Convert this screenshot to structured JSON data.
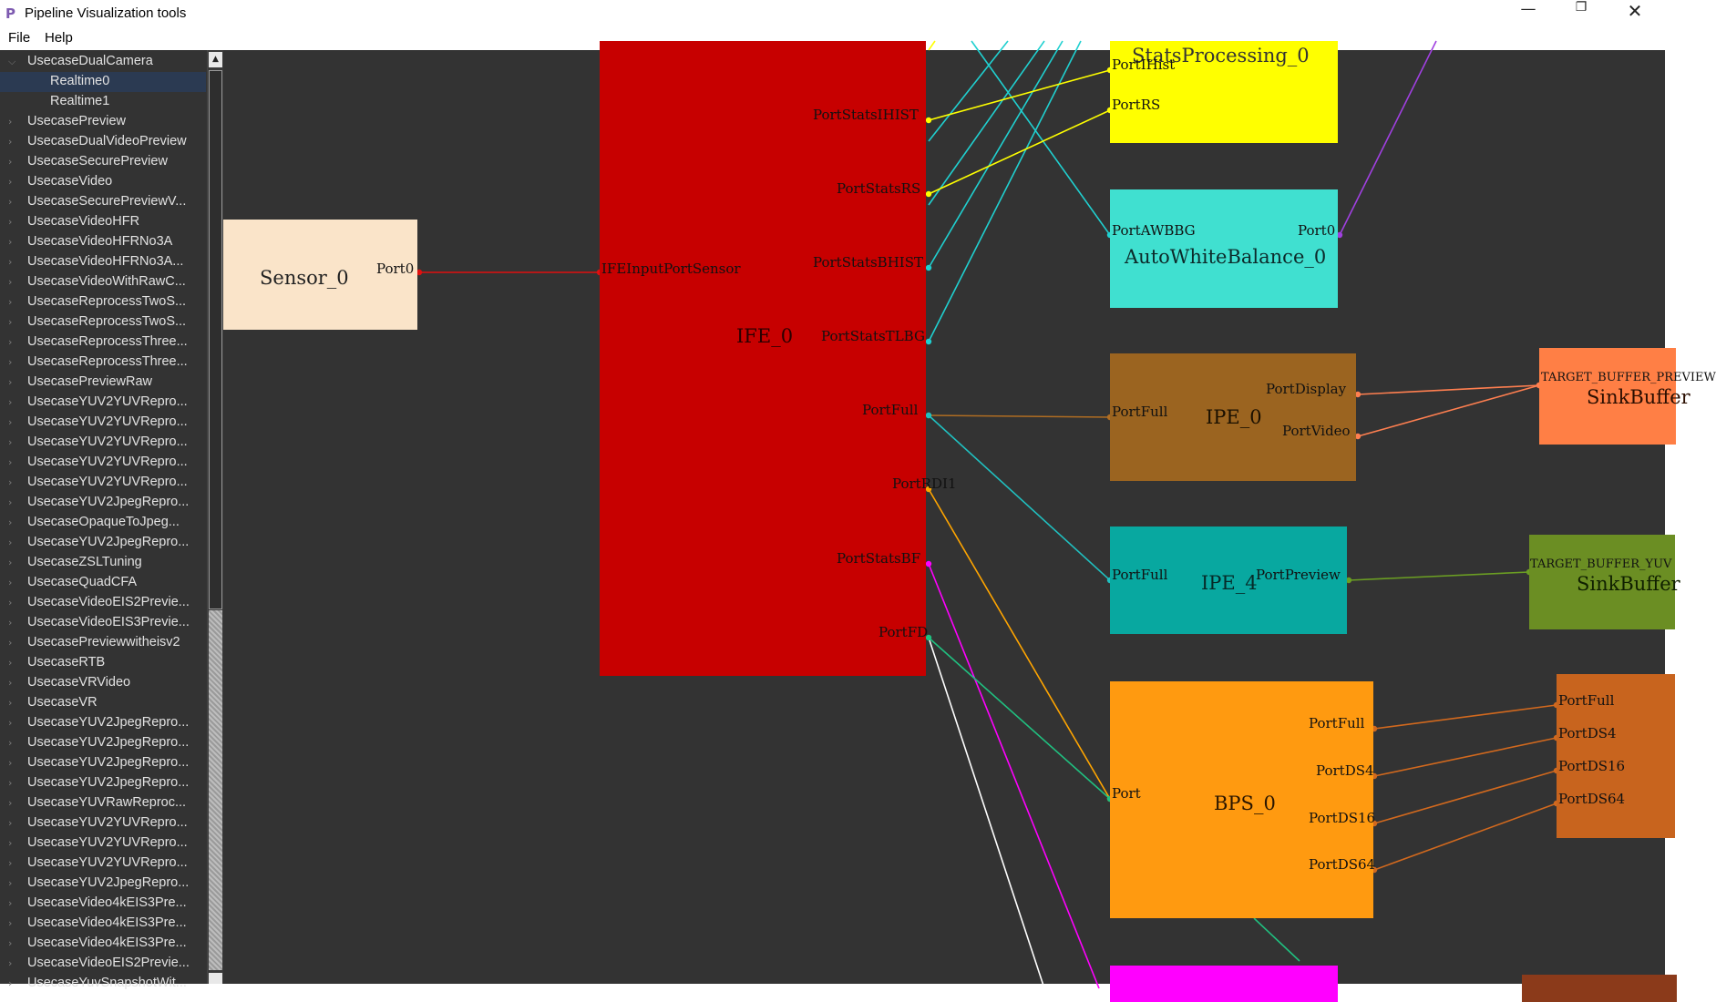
{
  "window": {
    "app_icon": "P",
    "title": "Pipeline Visualization tools",
    "minimize": "—",
    "maximize": "❐",
    "close": "✕"
  },
  "menu": {
    "file": "File",
    "help": "Help"
  },
  "tree": {
    "items": [
      {
        "label": "UsecaseDualCamera",
        "expanded": true
      },
      {
        "label": "Realtime0",
        "child": true,
        "selected": true
      },
      {
        "label": "Realtime1",
        "child": true
      },
      {
        "label": "UsecasePreview"
      },
      {
        "label": "UsecaseDualVideoPreview"
      },
      {
        "label": "UsecaseSecurePreview"
      },
      {
        "label": "UsecaseVideo"
      },
      {
        "label": "UsecaseSecurePreviewV..."
      },
      {
        "label": "UsecaseVideoHFR"
      },
      {
        "label": "UsecaseVideoHFRNo3A"
      },
      {
        "label": "UsecaseVideoHFRNo3A..."
      },
      {
        "label": "UsecaseVideoWithRawC..."
      },
      {
        "label": "UsecaseReprocessTwoS..."
      },
      {
        "label": "UsecaseReprocessTwoS..."
      },
      {
        "label": "UsecaseReprocessThree..."
      },
      {
        "label": "UsecaseReprocessThree..."
      },
      {
        "label": "UsecasePreviewRaw"
      },
      {
        "label": "UsecaseYUV2YUVRepro..."
      },
      {
        "label": "UsecaseYUV2YUVRepro..."
      },
      {
        "label": "UsecaseYUV2YUVRepro..."
      },
      {
        "label": "UsecaseYUV2YUVRepro..."
      },
      {
        "label": "UsecaseYUV2YUVRepro..."
      },
      {
        "label": "UsecaseYUV2JpegRepro..."
      },
      {
        "label": "UsecaseOpaqueToJpeg..."
      },
      {
        "label": "UsecaseYUV2JpegRepro..."
      },
      {
        "label": "UsecaseZSLTuning"
      },
      {
        "label": "UsecaseQuadCFA"
      },
      {
        "label": "UsecaseVideoEIS2Previe..."
      },
      {
        "label": "UsecaseVideoEIS3Previe..."
      },
      {
        "label": "UsecasePreviewwitheisv2"
      },
      {
        "label": "UsecaseRTB"
      },
      {
        "label": "UsecaseVRVideo"
      },
      {
        "label": "UsecaseVR"
      },
      {
        "label": "UsecaseYUV2JpegRepro..."
      },
      {
        "label": "UsecaseYUV2JpegRepro..."
      },
      {
        "label": "UsecaseYUV2JpegRepro..."
      },
      {
        "label": "UsecaseYUV2JpegRepro..."
      },
      {
        "label": "UsecaseYUVRawReproc..."
      },
      {
        "label": "UsecaseYUV2YUVRepro..."
      },
      {
        "label": "UsecaseYUV2YUVRepro..."
      },
      {
        "label": "UsecaseYUV2YUVRepro..."
      },
      {
        "label": "UsecaseYUV2JpegRepro..."
      },
      {
        "label": "UsecaseVideo4kEIS3Pre..."
      },
      {
        "label": "UsecaseVideo4kEIS3Pre..."
      },
      {
        "label": "UsecaseVideo4kEIS3Pre..."
      },
      {
        "label": "UsecaseVideoEIS2Previe..."
      },
      {
        "label": "UsecaseYuvSnapshotWit..."
      }
    ]
  },
  "graph": {
    "nodes": [
      {
        "id": "sensor",
        "title": "Sensor_0",
        "color": "#fae4c9",
        "ports": [
          {
            "id": "p0",
            "label": "Port0"
          }
        ]
      },
      {
        "id": "ife",
        "title": "IFE_0",
        "color": "#c70000",
        "ports": [
          {
            "id": "in",
            "label": "IFEInputPortSensor"
          },
          {
            "id": "ihist",
            "label": "PortStatsIHIST"
          },
          {
            "id": "rs",
            "label": "PortStatsRS"
          },
          {
            "id": "bhist",
            "label": "PortStatsBHIST"
          },
          {
            "id": "tlbg",
            "label": "PortStatsTLBG"
          },
          {
            "id": "full",
            "label": "PortFull"
          },
          {
            "id": "rdi",
            "label": "PortRDI1"
          },
          {
            "id": "bf",
            "label": "PortStatsBF"
          },
          {
            "id": "fd",
            "label": "PortFD"
          }
        ]
      },
      {
        "id": "statp",
        "title": "StatsProcessing_0",
        "color": "#ffff00",
        "ports": [
          {
            "id": "ihist",
            "label": "PortIHist"
          },
          {
            "id": "rs",
            "label": "PortRS"
          }
        ]
      },
      {
        "id": "awb",
        "title": "AutoWhiteBalance_0",
        "color": "#40e0d0",
        "ports": [
          {
            "id": "awbbg",
            "label": "PortAWBBG"
          },
          {
            "id": "out",
            "label": "Port0"
          }
        ]
      },
      {
        "id": "ipe0",
        "title": "IPE_0",
        "color": "#9b6420",
        "ports": [
          {
            "id": "full",
            "label": "PortFull"
          },
          {
            "id": "disp",
            "label": "PortDisplay"
          },
          {
            "id": "video",
            "label": "PortVideo"
          }
        ]
      },
      {
        "id": "ipe4",
        "title": "IPE_4",
        "color": "#08a8a0",
        "ports": [
          {
            "id": "full",
            "label": "PortFull"
          },
          {
            "id": "prev",
            "label": "PortPreview"
          }
        ]
      },
      {
        "id": "bps",
        "title": "BPS_0",
        "color": "#ff9a10",
        "ports": [
          {
            "id": "in",
            "label": "Port"
          },
          {
            "id": "full",
            "label": "PortFull"
          },
          {
            "id": "ds4",
            "label": "PortDS4"
          },
          {
            "id": "ds16",
            "label": "PortDS16"
          },
          {
            "id": "ds64",
            "label": "PortDS64"
          }
        ]
      },
      {
        "id": "sink1",
        "title": "SinkBuffer",
        "color": "#ff7f45",
        "ports": [
          {
            "id": "in",
            "label": "TARGET_BUFFER_PREVIEW"
          }
        ]
      },
      {
        "id": "sink2",
        "title": "SinkBuffer",
        "color": "#6b8e23",
        "ports": [
          {
            "id": "in",
            "label": "TARGET_BUFFER_YUV"
          }
        ]
      },
      {
        "id": "ipe_r",
        "title": "",
        "color": "#c8641e",
        "ports": [
          {
            "id": "full",
            "label": "PortFull"
          },
          {
            "id": "ds4",
            "label": "PortDS4"
          },
          {
            "id": "ds16",
            "label": "PortDS16"
          },
          {
            "id": "ds64",
            "label": "PortDS64"
          }
        ]
      },
      {
        "id": "magenta",
        "title": "",
        "color": "#ff00ff",
        "ports": []
      },
      {
        "id": "brown",
        "title": "",
        "color": "#8b3a1a",
        "ports": []
      }
    ],
    "links": [
      {
        "from": "sensor.p0",
        "to": "ife.in",
        "color": "#e01010"
      },
      {
        "from": "ife.ihist",
        "to": "statp.ihist",
        "color": "#ffff00"
      },
      {
        "from": "ife.rs",
        "to": "statp.rs",
        "color": "#ffff00"
      },
      {
        "from": "ife.full",
        "to": "ipe0.full",
        "color": "#b06d22"
      },
      {
        "from": "ife.full",
        "to": "ipe4.full",
        "color": "#20c0c0"
      },
      {
        "from": "ife.rdi",
        "to": "bps.in",
        "color": "#ffa500"
      },
      {
        "from": "ife.fd",
        "to": "bps.in",
        "color": "#20c080"
      },
      {
        "from": "ipe0.disp",
        "to": "sink1.in",
        "color": "#ff7f50"
      },
      {
        "from": "ipe0.video",
        "to": "sink1.in",
        "color": "#ff7f50"
      },
      {
        "from": "ipe4.prev",
        "to": "sink2.in",
        "color": "#6b9e23"
      },
      {
        "from": "bps.full",
        "to": "ipe_r.full",
        "color": "#d2691e"
      },
      {
        "from": "bps.ds4",
        "to": "ipe_r.ds4",
        "color": "#d2691e"
      },
      {
        "from": "bps.ds16",
        "to": "ipe_r.ds16",
        "color": "#d2691e"
      },
      {
        "from": "bps.ds64",
        "to": "ipe_r.ds64",
        "color": "#d2691e"
      }
    ]
  }
}
